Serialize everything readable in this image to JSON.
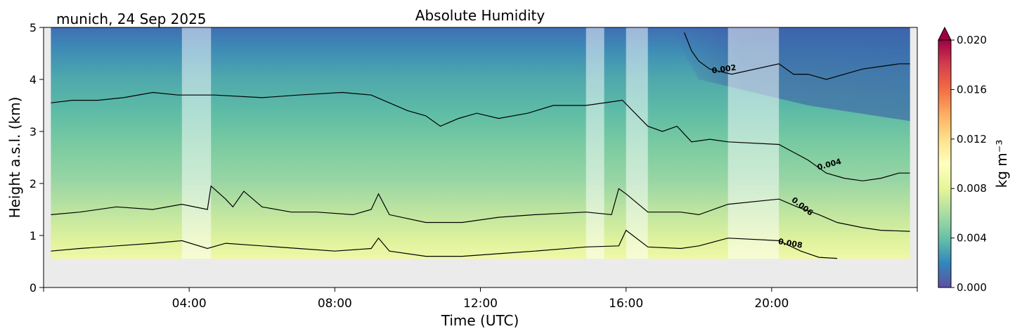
{
  "chart_data": {
    "type": "heatmap",
    "location_date": "munich, 24 Sep 2025",
    "title": "Absolute Humidity",
    "xlabel": "Time (UTC)",
    "ylabel": "Height a.s.l. (km)",
    "x_ticks": [
      "04:00",
      "08:00",
      "12:00",
      "16:00",
      "20:00"
    ],
    "x_tick_hours": [
      4,
      8,
      12,
      16,
      20
    ],
    "xlim_hours": [
      0,
      24
    ],
    "y_ticks": [
      "0",
      "1",
      "2",
      "3",
      "4",
      "5"
    ],
    "ylim_km": [
      0,
      5
    ],
    "data_bottom_km": 0.55,
    "colorbar": {
      "label": "kg m⁻³",
      "ticks": [
        "0.000",
        "0.004",
        "0.008",
        "0.012",
        "0.016",
        "0.020"
      ],
      "range": [
        0,
        0.02
      ],
      "extend": "max",
      "colormap": "Spectral_r"
    },
    "contours": [
      {
        "level": "0.002",
        "points": [
          [
            17.6,
            4.9
          ],
          [
            17.8,
            4.55
          ],
          [
            18.0,
            4.35
          ],
          [
            18.3,
            4.2
          ],
          [
            18.6,
            4.15
          ],
          [
            18.9,
            4.1
          ],
          [
            20.2,
            4.3
          ],
          [
            20.6,
            4.1
          ],
          [
            21.0,
            4.1
          ],
          [
            21.5,
            4.0
          ],
          [
            22.0,
            4.1
          ],
          [
            22.5,
            4.2
          ],
          [
            23.0,
            4.25
          ],
          [
            23.5,
            4.3
          ],
          [
            23.8,
            4.3
          ]
        ]
      },
      {
        "level": "0.004",
        "points": [
          [
            0.2,
            3.55
          ],
          [
            0.8,
            3.6
          ],
          [
            1.5,
            3.6
          ],
          [
            2.2,
            3.65
          ],
          [
            3.0,
            3.75
          ],
          [
            3.7,
            3.7
          ],
          [
            4.7,
            3.7
          ],
          [
            6.0,
            3.65
          ],
          [
            7.0,
            3.7
          ],
          [
            8.2,
            3.75
          ],
          [
            9.0,
            3.7
          ],
          [
            9.5,
            3.55
          ],
          [
            10.0,
            3.4
          ],
          [
            10.5,
            3.3
          ],
          [
            10.9,
            3.1
          ],
          [
            11.4,
            3.25
          ],
          [
            11.9,
            3.35
          ],
          [
            12.5,
            3.25
          ],
          [
            13.3,
            3.35
          ],
          [
            14.0,
            3.5
          ],
          [
            14.9,
            3.5
          ],
          [
            15.9,
            3.6
          ],
          [
            16.6,
            3.1
          ],
          [
            17.0,
            3.0
          ],
          [
            17.4,
            3.1
          ],
          [
            17.8,
            2.8
          ],
          [
            18.3,
            2.85
          ],
          [
            18.8,
            2.8
          ],
          [
            20.2,
            2.75
          ],
          [
            20.6,
            2.6
          ],
          [
            21.0,
            2.45
          ],
          [
            21.5,
            2.2
          ],
          [
            22.0,
            2.1
          ],
          [
            22.5,
            2.05
          ],
          [
            23.0,
            2.1
          ],
          [
            23.5,
            2.2
          ],
          [
            23.8,
            2.2
          ]
        ]
      },
      {
        "level": "0.006",
        "points": [
          [
            0.2,
            1.4
          ],
          [
            1.0,
            1.45
          ],
          [
            2.0,
            1.55
          ],
          [
            3.0,
            1.5
          ],
          [
            3.8,
            1.6
          ],
          [
            4.5,
            1.5
          ],
          [
            4.6,
            1.95
          ],
          [
            5.0,
            1.7
          ],
          [
            5.2,
            1.55
          ],
          [
            5.5,
            1.85
          ],
          [
            6.0,
            1.55
          ],
          [
            6.8,
            1.45
          ],
          [
            7.5,
            1.45
          ],
          [
            8.5,
            1.4
          ],
          [
            9.0,
            1.5
          ],
          [
            9.2,
            1.8
          ],
          [
            9.5,
            1.4
          ],
          [
            10.5,
            1.25
          ],
          [
            11.5,
            1.25
          ],
          [
            12.5,
            1.35
          ],
          [
            13.5,
            1.4
          ],
          [
            14.9,
            1.45
          ],
          [
            15.6,
            1.4
          ],
          [
            15.8,
            1.9
          ],
          [
            16.0,
            1.8
          ],
          [
            16.6,
            1.45
          ],
          [
            17.5,
            1.45
          ],
          [
            18.0,
            1.4
          ],
          [
            18.8,
            1.6
          ],
          [
            20.2,
            1.7
          ],
          [
            20.7,
            1.55
          ],
          [
            21.3,
            1.4
          ],
          [
            21.8,
            1.25
          ],
          [
            22.5,
            1.15
          ],
          [
            23.0,
            1.1
          ],
          [
            23.8,
            1.08
          ]
        ]
      },
      {
        "level": "0.008",
        "points": [
          [
            0.2,
            0.7
          ],
          [
            1.0,
            0.75
          ],
          [
            2.0,
            0.8
          ],
          [
            3.0,
            0.85
          ],
          [
            3.8,
            0.9
          ],
          [
            4.5,
            0.75
          ],
          [
            5.0,
            0.85
          ],
          [
            6.0,
            0.8
          ],
          [
            7.0,
            0.75
          ],
          [
            8.0,
            0.7
          ],
          [
            9.0,
            0.75
          ],
          [
            9.2,
            0.95
          ],
          [
            9.5,
            0.7
          ],
          [
            10.5,
            0.6
          ],
          [
            11.5,
            0.6
          ],
          [
            12.5,
            0.65
          ],
          [
            13.5,
            0.7
          ],
          [
            14.9,
            0.78
          ],
          [
            15.8,
            0.8
          ],
          [
            16.0,
            1.1
          ],
          [
            16.6,
            0.78
          ],
          [
            17.5,
            0.75
          ],
          [
            18.0,
            0.8
          ],
          [
            18.8,
            0.95
          ],
          [
            20.2,
            0.9
          ],
          [
            20.8,
            0.7
          ],
          [
            21.3,
            0.58
          ],
          [
            21.8,
            0.56
          ]
        ]
      }
    ],
    "contour_labels": [
      {
        "text": "0.002",
        "x": 18.7,
        "y": 4.15,
        "angle": -8
      },
      {
        "text": "0.004",
        "x": 21.6,
        "y": 2.32,
        "angle": -15
      },
      {
        "text": "0.006",
        "x": 20.8,
        "y": 1.52,
        "angle": 38
      },
      {
        "text": "0.008",
        "x": 20.5,
        "y": 0.8,
        "angle": 10
      }
    ],
    "masked_intervals_hours": [
      [
        3.8,
        4.6
      ],
      [
        14.9,
        15.4
      ],
      [
        16.0,
        16.6
      ],
      [
        18.8,
        20.2
      ]
    ]
  }
}
